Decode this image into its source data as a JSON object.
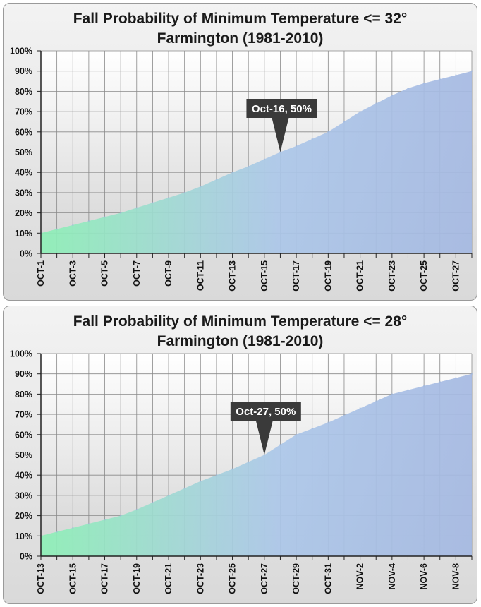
{
  "chart_data": [
    {
      "type": "area",
      "title": "Fall Probability of Minimum Temperature <= 32°",
      "subtitle": "Farmington (1981-2010)",
      "ylim": [
        0,
        100
      ],
      "yticks": [
        "0%",
        "10%",
        "20%",
        "30%",
        "40%",
        "50%",
        "60%",
        "70%",
        "80%",
        "90%",
        "100%"
      ],
      "x": [
        "OCT-1",
        "OCT-2",
        "OCT-3",
        "OCT-4",
        "OCT-5",
        "OCT-6",
        "OCT-7",
        "OCT-8",
        "OCT-9",
        "OCT-10",
        "OCT-11",
        "OCT-12",
        "OCT-13",
        "OCT-14",
        "OCT-15",
        "OCT-16",
        "OCT-17",
        "OCT-18",
        "OCT-19",
        "OCT-20",
        "OCT-21",
        "OCT-22",
        "OCT-23",
        "OCT-24",
        "OCT-25",
        "OCT-26",
        "OCT-27",
        "OCT-28"
      ],
      "xtick_labels": [
        "OCT-1",
        "OCT-3",
        "OCT-5",
        "OCT-7",
        "OCT-9",
        "OCT-11",
        "OCT-13",
        "OCT-15",
        "OCT-17",
        "OCT-19",
        "OCT-21",
        "OCT-23",
        "OCT-25",
        "OCT-27"
      ],
      "values": [
        10,
        12,
        14,
        16,
        18,
        20,
        22.5,
        25,
        27.5,
        30,
        33,
        36.5,
        40,
        43,
        46.5,
        50,
        53,
        56.5,
        60,
        65,
        70,
        74,
        78,
        81.5,
        84,
        86,
        88,
        90
      ],
      "annotation": {
        "label": "Oct-16, 50%",
        "x": "OCT-16",
        "y": 50
      },
      "grid": true,
      "legend": "none"
    },
    {
      "type": "area",
      "title": "Fall Probability of Minimum Temperature <= 28°",
      "subtitle": "Farmington (1981-2010)",
      "ylim": [
        0,
        100
      ],
      "yticks": [
        "0%",
        "10%",
        "20%",
        "30%",
        "40%",
        "50%",
        "60%",
        "70%",
        "80%",
        "90%",
        "100%"
      ],
      "x": [
        "OCT-13",
        "OCT-14",
        "OCT-15",
        "OCT-16",
        "OCT-17",
        "OCT-18",
        "OCT-19",
        "OCT-20",
        "OCT-21",
        "OCT-22",
        "OCT-23",
        "OCT-24",
        "OCT-25",
        "OCT-26",
        "OCT-27",
        "OCT-28",
        "OCT-29",
        "OCT-30",
        "OCT-31",
        "NOV-1",
        "NOV-2",
        "NOV-3",
        "NOV-4",
        "NOV-5",
        "NOV-6",
        "NOV-7",
        "NOV-8",
        "NOV-9"
      ],
      "xtick_labels": [
        "OCT-13",
        "OCT-15",
        "OCT-17",
        "OCT-19",
        "OCT-21",
        "OCT-23",
        "OCT-25",
        "OCT-27",
        "OCT-29",
        "OCT-31",
        "NOV-2",
        "NOV-4",
        "NOV-6",
        "NOV-8"
      ],
      "values": [
        10,
        12,
        14,
        16,
        18,
        20,
        23,
        26.5,
        30,
        33.5,
        37,
        40,
        43,
        46.5,
        50,
        55,
        60,
        63,
        66,
        69.5,
        73,
        76.5,
        80,
        82,
        84,
        86,
        88,
        90
      ],
      "annotation": {
        "label": "Oct-27, 50%",
        "x": "OCT-27",
        "y": 50
      },
      "grid": true,
      "legend": "none"
    }
  ]
}
